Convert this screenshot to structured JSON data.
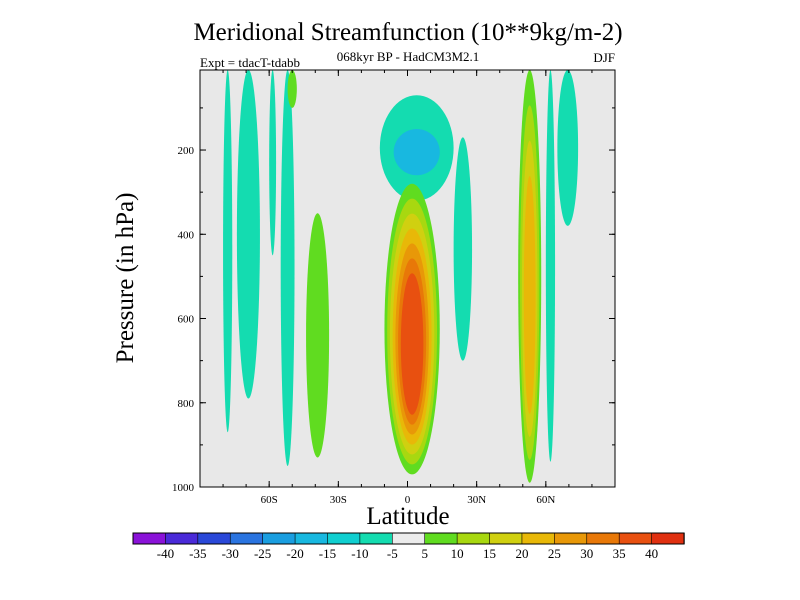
{
  "chart_data": {
    "type": "heatmap",
    "title": "Meridional Streamfunction (10**9kg/m-2)",
    "subtitle": "068kyr BP - HadCM3M2.1",
    "left_label": "Expt = tdacT-tdabb",
    "right_label": "DJF",
    "xlabel": "Latitude",
    "ylabel": "Pressure (in hPa)",
    "xlim": [
      -90,
      90
    ],
    "ylim": [
      1000,
      10
    ],
    "y_inverted": true,
    "x_ticks": [
      {
        "value": -60,
        "label": "60S"
      },
      {
        "value": -30,
        "label": "30S"
      },
      {
        "value": 0,
        "label": "0"
      },
      {
        "value": 30,
        "label": "30N"
      },
      {
        "value": 60,
        "label": "60N"
      }
    ],
    "y_ticks": [
      {
        "value": 200,
        "label": "200"
      },
      {
        "value": 400,
        "label": "400"
      },
      {
        "value": 600,
        "label": "600"
      },
      {
        "value": 800,
        "label": "800"
      },
      {
        "value": 1000,
        "label": "1000"
      }
    ],
    "colorbar": {
      "levels": [
        -40,
        -35,
        -30,
        -25,
        -20,
        -15,
        -10,
        -5,
        5,
        10,
        15,
        20,
        25,
        30,
        35,
        40
      ],
      "labels": [
        "-40",
        "-35",
        "-30",
        "-25",
        "-20",
        "-15",
        "-10",
        "-5",
        "5",
        "10",
        "15",
        "20",
        "25",
        "30",
        "35",
        "40"
      ],
      "colors": [
        "#8a12d8",
        "#4a2ad8",
        "#2a48d8",
        "#2a74e0",
        "#1a9ee0",
        "#18b8e0",
        "#10cfd0",
        "#14dcb0",
        "#ececec",
        "#60dc20",
        "#a8d810",
        "#d0d010",
        "#e8b808",
        "#e89808",
        "#e87808",
        "#e85010",
        "#e03010"
      ]
    },
    "background_color": "#e8e8e8",
    "features": [
      {
        "name": "sh-column-1",
        "lat": [
          -80,
          -76
        ],
        "p": [
          10,
          870
        ],
        "band": 7
      },
      {
        "name": "sh-column-2",
        "lat": [
          -74,
          -64
        ],
        "p": [
          10,
          790
        ],
        "band": 7
      },
      {
        "name": "sh-column-3",
        "lat": [
          -60,
          -57
        ],
        "p": [
          10,
          450
        ],
        "band": 7
      },
      {
        "name": "sh-column-4",
        "lat": [
          -55,
          -49
        ],
        "p": [
          10,
          950
        ],
        "band": 7
      },
      {
        "name": "sh-green-upper",
        "lat": [
          -52,
          -48
        ],
        "p": [
          10,
          100
        ],
        "band": 9
      },
      {
        "name": "sh-green-mid",
        "lat": [
          -44,
          -34
        ],
        "p": [
          350,
          930
        ],
        "band": 9
      },
      {
        "name": "upper-negative-cell",
        "lat": [
          -12,
          20
        ],
        "p": [
          70,
          320
        ],
        "band": 7
      },
      {
        "name": "upper-negative-core",
        "lat": [
          -6,
          14
        ],
        "p": [
          150,
          260
        ],
        "band": 5
      },
      {
        "name": "equatorial-cell",
        "lat": [
          -10,
          14
        ],
        "p": [
          280,
          970
        ],
        "band": 9,
        "peak": 38
      },
      {
        "name": "nh-column-1",
        "lat": [
          20,
          28
        ],
        "p": [
          170,
          700
        ],
        "band": 7
      },
      {
        "name": "nh-positive-column",
        "lat": [
          48,
          58
        ],
        "p": [
          10,
          990
        ],
        "band": 9,
        "peak": 22
      },
      {
        "name": "nh-column-2",
        "lat": [
          60,
          64
        ],
        "p": [
          10,
          940
        ],
        "band": 7
      },
      {
        "name": "nh-column-3",
        "lat": [
          65,
          74
        ],
        "p": [
          10,
          380
        ],
        "band": 7
      }
    ]
  }
}
